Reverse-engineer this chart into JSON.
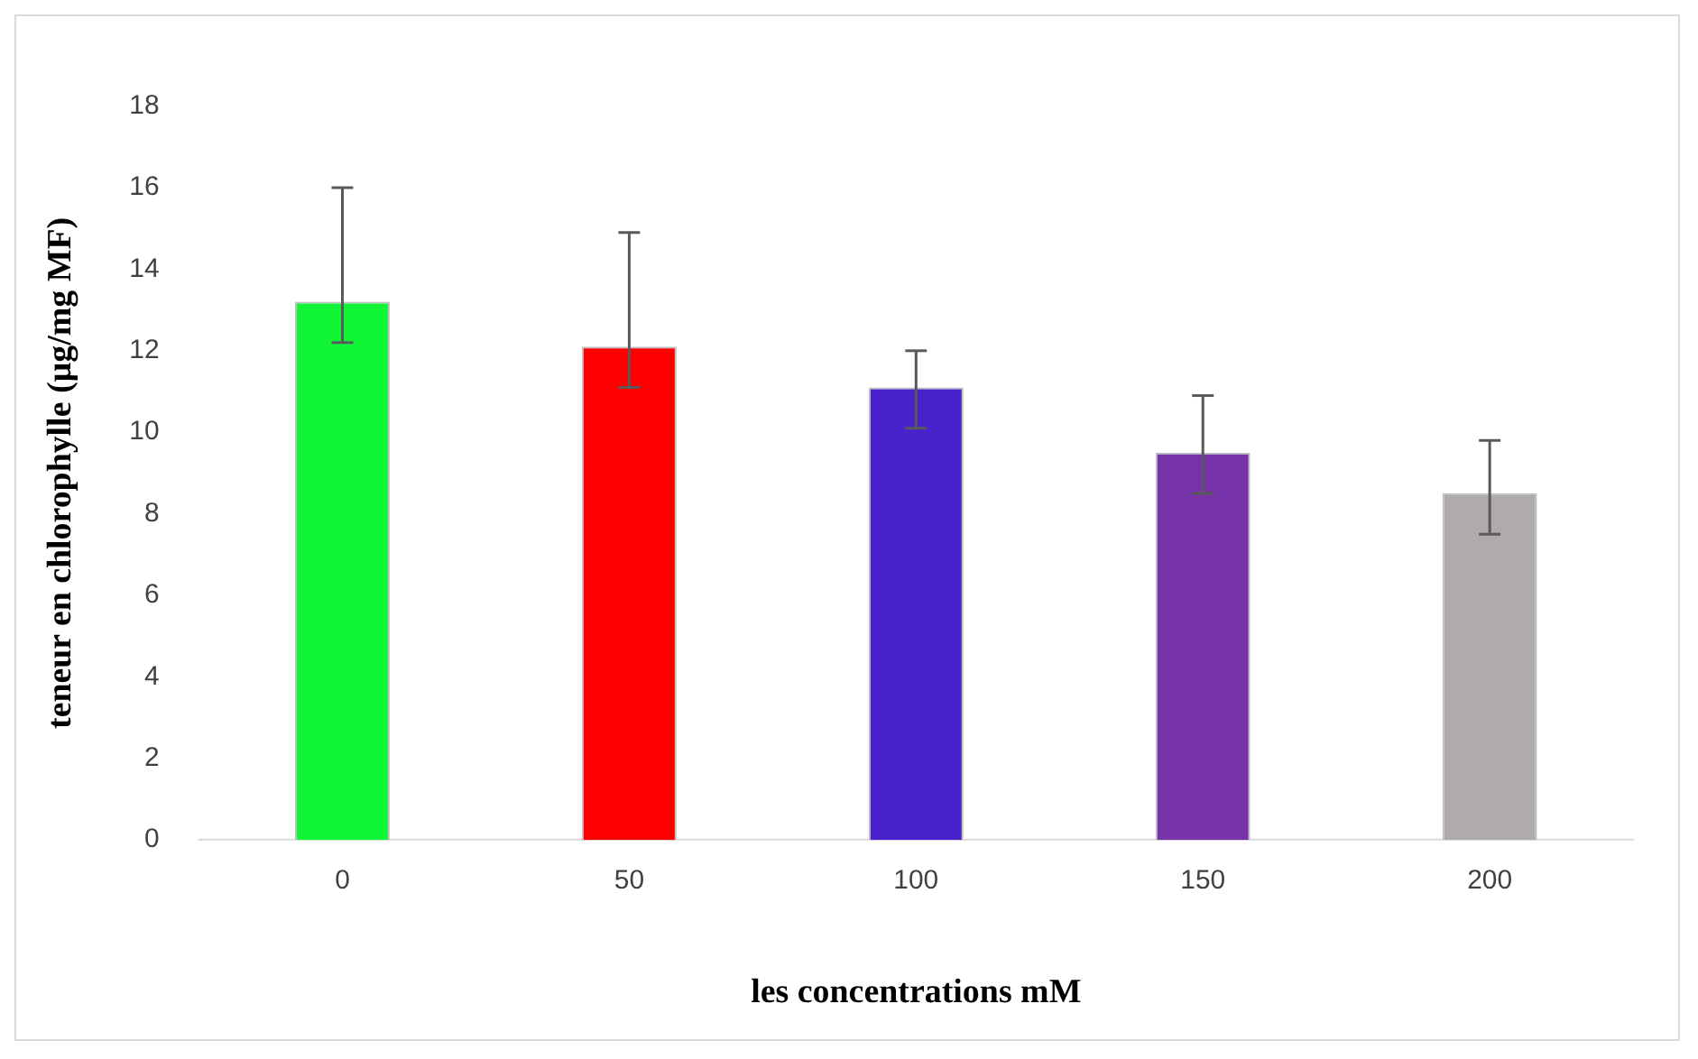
{
  "chart_data": {
    "type": "bar",
    "xlabel": "les concentrations mM",
    "ylabel": "teneur en chlorophylle (µg/mg MF)",
    "categories": [
      "0",
      "50",
      "100",
      "150",
      "200"
    ],
    "values": [
      13.2,
      12.1,
      11.1,
      9.5,
      8.5
    ],
    "colors": [
      "#10f535",
      "#ff0000",
      "#4a22cc",
      "#7733aa",
      "#b0aaaa"
    ],
    "errors": [
      [
        12.2,
        16.0
      ],
      [
        11.1,
        14.9
      ],
      [
        10.1,
        12.0
      ],
      [
        8.5,
        10.9
      ],
      [
        7.5,
        9.8
      ]
    ],
    "ylim": [
      0,
      18
    ],
    "yticks": [
      0,
      2,
      4,
      6,
      8,
      10,
      12,
      14,
      16,
      18
    ],
    "grid": false,
    "legend": false
  }
}
